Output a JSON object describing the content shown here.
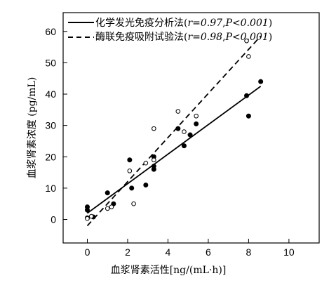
{
  "chart_data": {
    "type": "scatter",
    "xlabel": "血浆肾素活性[ng/(mL·h)]",
    "ylabel": "血浆肾素浓度 (pg/mL)",
    "xlim": [
      -1.2,
      11.5
    ],
    "ylim": [
      -7.5,
      66
    ],
    "x_ticks": [
      0,
      2,
      4,
      6,
      8,
      10
    ],
    "y_ticks": [
      0,
      10,
      20,
      30,
      40,
      50,
      60
    ],
    "series": [
      {
        "name": "化学发光免疫分析法",
        "r_label": "r=0.97",
        "p_label": "P<0.001",
        "marker": "filled-circle",
        "line_style": "solid",
        "fit": {
          "x": [
            0,
            8.6
          ],
          "y": [
            2.0,
            42.5
          ]
        },
        "points": [
          {
            "x": 0.0,
            "y": 4.0
          },
          {
            "x": 0.0,
            "y": 3.0
          },
          {
            "x": 0.0,
            "y": 0.5
          },
          {
            "x": 0.3,
            "y": 0.8
          },
          {
            "x": 1.0,
            "y": 8.5
          },
          {
            "x": 1.3,
            "y": 5.0
          },
          {
            "x": 2.1,
            "y": 19.0
          },
          {
            "x": 2.2,
            "y": 10.0
          },
          {
            "x": 2.9,
            "y": 11.0
          },
          {
            "x": 3.3,
            "y": 20.0
          },
          {
            "x": 3.3,
            "y": 17.0
          },
          {
            "x": 3.3,
            "y": 16.0
          },
          {
            "x": 4.5,
            "y": 29.0
          },
          {
            "x": 4.8,
            "y": 23.5
          },
          {
            "x": 5.1,
            "y": 27.0
          },
          {
            "x": 5.4,
            "y": 30.5
          },
          {
            "x": 7.9,
            "y": 39.5
          },
          {
            "x": 8.0,
            "y": 33.0
          },
          {
            "x": 8.6,
            "y": 44.0
          }
        ]
      },
      {
        "name": "酶联免疫吸附试验法",
        "r_label": "r=0.98",
        "p_label": "P<0.001",
        "marker": "open-circle",
        "line_style": "dashed",
        "fit": {
          "x": [
            0,
            8.6
          ],
          "y": [
            -2.0,
            58.5
          ]
        },
        "points": [
          {
            "x": 0.0,
            "y": 0.3
          },
          {
            "x": 0.2,
            "y": 1.0
          },
          {
            "x": 1.0,
            "y": 3.5
          },
          {
            "x": 1.2,
            "y": 4.0
          },
          {
            "x": 2.1,
            "y": 15.5
          },
          {
            "x": 2.3,
            "y": 5.0
          },
          {
            "x": 2.9,
            "y": 18.0
          },
          {
            "x": 3.3,
            "y": 29.0
          },
          {
            "x": 3.3,
            "y": 19.0
          },
          {
            "x": 4.5,
            "y": 34.5
          },
          {
            "x": 4.8,
            "y": 28.0
          },
          {
            "x": 5.4,
            "y": 33.0
          },
          {
            "x": 7.9,
            "y": 57.0
          },
          {
            "x": 8.0,
            "y": 52.0
          }
        ]
      }
    ],
    "legend_placement": "top"
  }
}
